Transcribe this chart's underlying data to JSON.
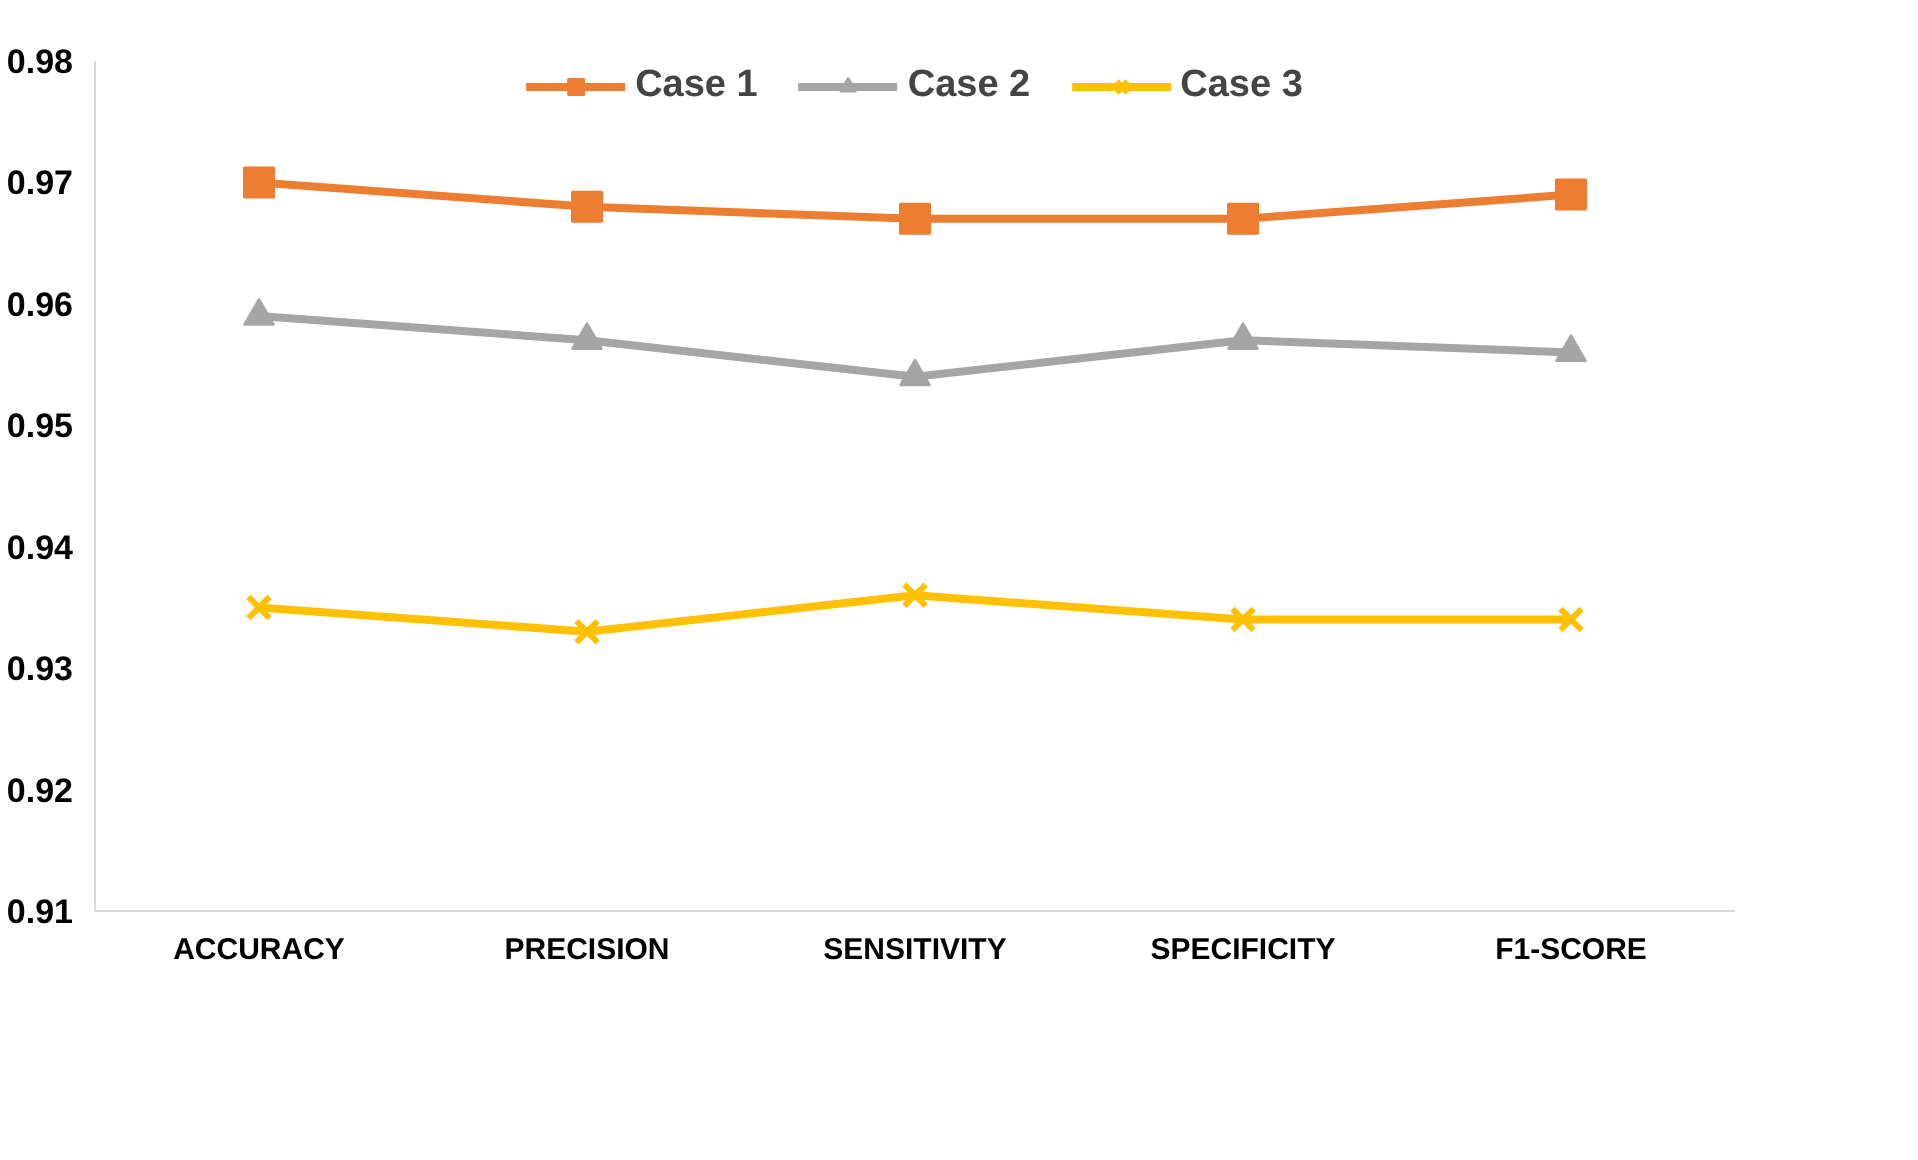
{
  "chart_data": {
    "type": "line",
    "categories": [
      "ACCURACY",
      "PRECISION",
      "SENSITIVITY",
      "SPECIFICITY",
      "F1-SCORE"
    ],
    "series": [
      {
        "name": "Case 1",
        "color": "#ed7d31",
        "marker": "square",
        "values": [
          0.97,
          0.968,
          0.967,
          0.967,
          0.969
        ]
      },
      {
        "name": "Case 2",
        "color": "#a5a5a5",
        "marker": "triangle",
        "values": [
          0.959,
          0.957,
          0.954,
          0.957,
          0.956
        ]
      },
      {
        "name": "Case 3",
        "color": "#ffc000",
        "marker": "cross",
        "values": [
          0.935,
          0.933,
          0.936,
          0.934,
          0.934
        ]
      }
    ],
    "ylim": [
      0.91,
      0.98
    ],
    "yticks": [
      0.91,
      0.92,
      0.93,
      0.94,
      0.95,
      0.96,
      0.97,
      0.98
    ],
    "grid": false,
    "legend": "top"
  }
}
